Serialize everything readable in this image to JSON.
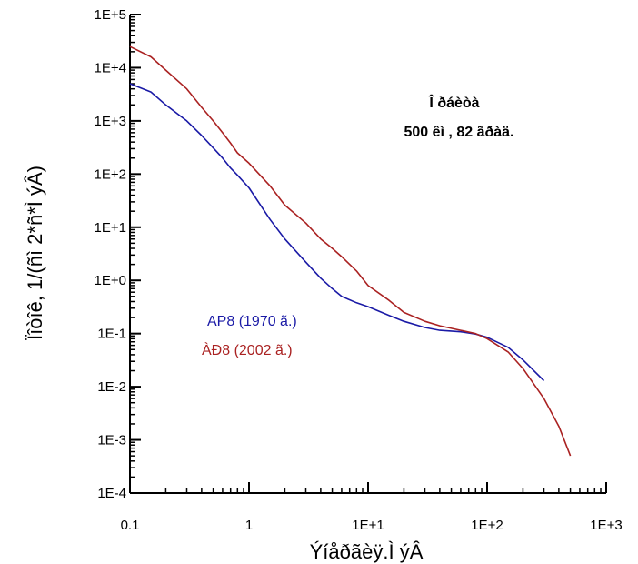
{
  "chart_data": {
    "type": "line",
    "title": "",
    "xlabel": "Ýíåðãèÿ.Ì ýÂ",
    "ylabel": "Ïîòîê, 1/(ñì 2*ñ*Ì ýÂ)",
    "x_scale": "log",
    "y_scale": "log",
    "xlim": [
      0.1,
      1000
    ],
    "ylim": [
      0.0001,
      100000
    ],
    "x_tick_labels": [
      "0.1",
      "1",
      "1E+1",
      "1E+2",
      "1E+3"
    ],
    "y_tick_labels": [
      "1E-4",
      "1E-3",
      "1E-2",
      "1E-1",
      "1E+0",
      "1E+1",
      "1E+2",
      "1E+3",
      "1E+4",
      "1E+5"
    ],
    "annotation": [
      "Î ðáèòà",
      "500 êì , 82 ãðàä."
    ],
    "legend_placement": "center-left",
    "series": [
      {
        "name": "AP8 (1970 ã.)",
        "color": "#1a1aa6",
        "x": [
          0.1,
          0.15,
          0.2,
          0.3,
          0.4,
          0.5,
          0.6,
          0.7,
          0.8,
          1,
          1.5,
          2,
          3,
          4,
          5,
          6,
          8,
          10,
          15,
          20,
          30,
          40,
          60,
          80,
          100,
          150,
          200,
          300
        ],
        "y": [
          5000,
          3500,
          2000,
          1000,
          530,
          310,
          200,
          130,
          95,
          55,
          14,
          6,
          2.2,
          1.1,
          0.7,
          0.5,
          0.38,
          0.32,
          0.22,
          0.17,
          0.13,
          0.115,
          0.108,
          0.098,
          0.085,
          0.055,
          0.032,
          0.013
        ]
      },
      {
        "name": "ÀÐ8 (2002 ã.)",
        "color": "#aa2222",
        "x": [
          0.1,
          0.15,
          0.2,
          0.3,
          0.4,
          0.5,
          0.6,
          0.7,
          0.8,
          1,
          1.5,
          2,
          3,
          4,
          5,
          6,
          8,
          10,
          15,
          20,
          30,
          40,
          60,
          80,
          100,
          150,
          200,
          300,
          400,
          500
        ],
        "y": [
          25000,
          16000,
          9000,
          4000,
          1800,
          1000,
          600,
          380,
          250,
          160,
          60,
          26,
          12,
          6,
          4,
          2.8,
          1.5,
          0.8,
          0.42,
          0.25,
          0.17,
          0.14,
          0.115,
          0.1,
          0.08,
          0.045,
          0.022,
          0.006,
          0.0018,
          0.0005
        ]
      }
    ]
  }
}
